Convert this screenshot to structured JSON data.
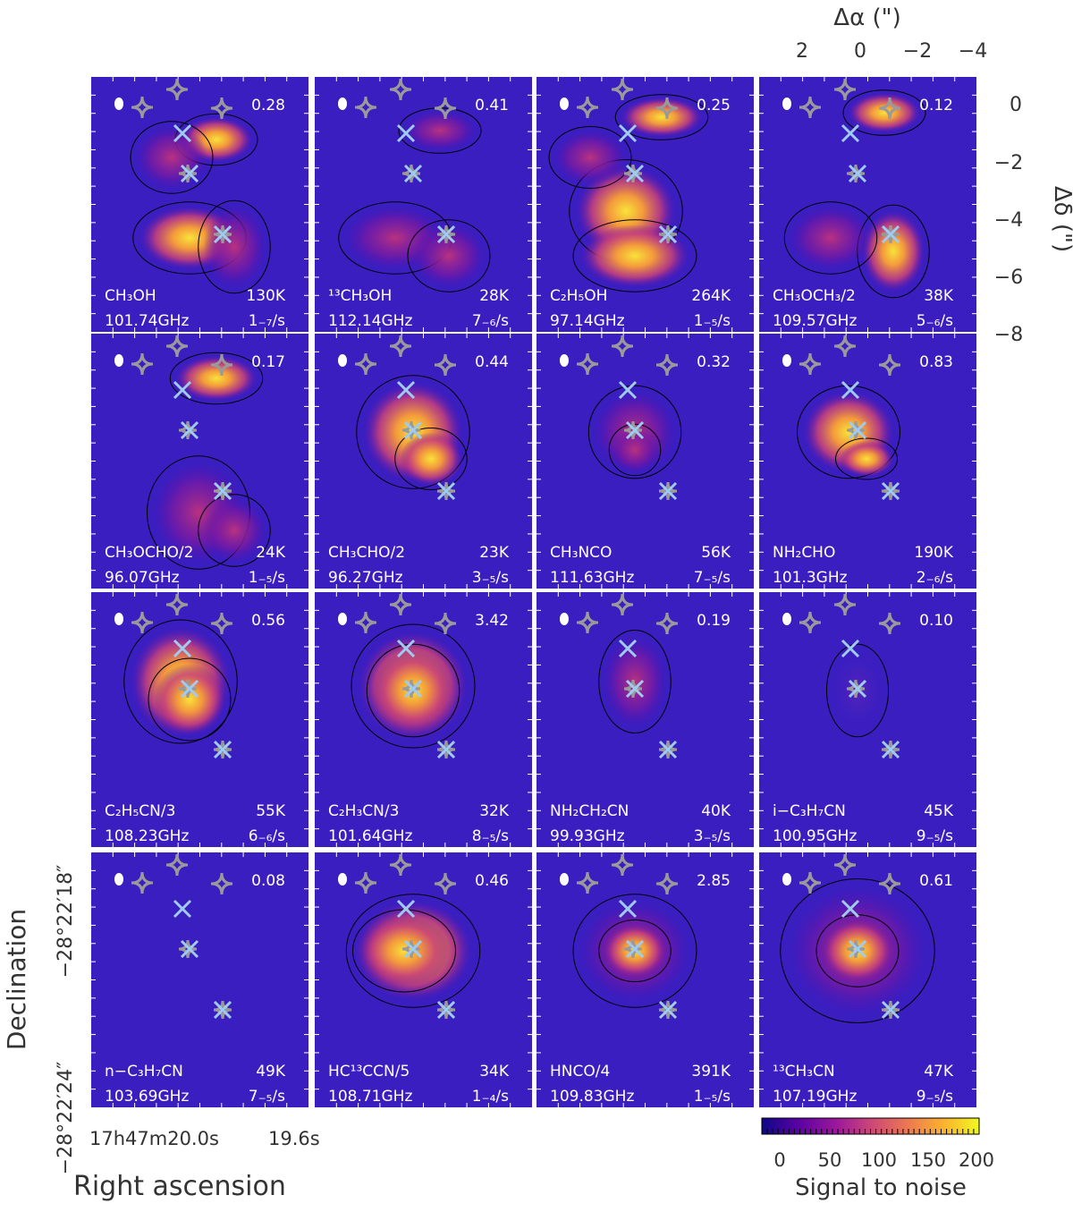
{
  "top_axis": {
    "label": "Δα (\")",
    "ticks": [
      "2",
      "0",
      "−2",
      "−4"
    ]
  },
  "right_axis": {
    "label": "Δδ (\")",
    "ticks": [
      "0",
      "−2",
      "−4",
      "−6",
      "−8"
    ]
  },
  "left_axis": {
    "label": "Declination",
    "ticks": [
      "−28°22′18″",
      "−28°22′24″"
    ]
  },
  "bottom_axis": {
    "label": "Right ascension",
    "ticks": [
      "17h47m20.0s",
      "19.6s"
    ]
  },
  "colorbar": {
    "label": "Signal to noise",
    "ticks": [
      "0",
      "50",
      "100",
      "150",
      "200"
    ],
    "range": [
      0,
      200
    ],
    "colormap": [
      "#0d0887",
      "#5b02a3",
      "#9a179b",
      "#cb4678",
      "#eb7852",
      "#fbb32f",
      "#f0f921"
    ]
  },
  "colors": {
    "panel_background": "#3b1ec0",
    "cross_marker": "#9fcbf0",
    "star_marker": "#9a9a9a",
    "contour": "#000000"
  },
  "panels": [
    {
      "molecule": "CH₃OH",
      "energy": "130K",
      "frequency": "101.74GHz",
      "scale": "1₋₇/s",
      "peak": "0.28"
    },
    {
      "molecule": "¹³CH₃OH",
      "energy": "28K",
      "frequency": "112.14GHz",
      "scale": "7₋₆/s",
      "peak": "0.41"
    },
    {
      "molecule": "C₂H₅OH",
      "energy": "264K",
      "frequency": "97.14GHz",
      "scale": "1₋₅/s",
      "peak": "0.25"
    },
    {
      "molecule": "CH₃OCH₃/2",
      "energy": "38K",
      "frequency": "109.57GHz",
      "scale": "5₋₆/s",
      "peak": "0.12"
    },
    {
      "molecule": "CH₃OCHO/2",
      "energy": "24K",
      "frequency": "96.07GHz",
      "scale": "1₋₅/s",
      "peak": "0.17"
    },
    {
      "molecule": "CH₃CHO/2",
      "energy": "23K",
      "frequency": "96.27GHz",
      "scale": "3₋₅/s",
      "peak": "0.44"
    },
    {
      "molecule": "CH₃NCO",
      "energy": "56K",
      "frequency": "111.63GHz",
      "scale": "7₋₅/s",
      "peak": "0.32"
    },
    {
      "molecule": "NH₂CHO",
      "energy": "190K",
      "frequency": "101.3GHz",
      "scale": "2₋₆/s",
      "peak": "0.83"
    },
    {
      "molecule": "C₂H₅CN/3",
      "energy": "55K",
      "frequency": "108.23GHz",
      "scale": "6₋₆/s",
      "peak": "0.56"
    },
    {
      "molecule": "C₂H₃CN/3",
      "energy": "32K",
      "frequency": "101.64GHz",
      "scale": "8₋₅/s",
      "peak": "3.42"
    },
    {
      "molecule": "NH₂CH₂CN",
      "energy": "40K",
      "frequency": "99.93GHz",
      "scale": "3₋₅/s",
      "peak": "0.19"
    },
    {
      "molecule": "i−C₃H₇CN",
      "energy": "45K",
      "frequency": "100.95GHz",
      "scale": "9₋₅/s",
      "peak": "0.10"
    },
    {
      "molecule": "n−C₃H₇CN",
      "energy": "49K",
      "frequency": "103.69GHz",
      "scale": "7₋₅/s",
      "peak": "0.08"
    },
    {
      "molecule": "HC¹³CCN/5",
      "energy": "34K",
      "frequency": "108.71GHz",
      "scale": "1₋₄/s",
      "peak": "0.46"
    },
    {
      "molecule": "HNCO/4",
      "energy": "391K",
      "frequency": "109.83GHz",
      "scale": "1₋₅/s",
      "peak": "2.85"
    },
    {
      "molecule": "¹³CH₃CN",
      "energy": "47K",
      "frequency": "107.19GHz",
      "scale": "9₋₅/s",
      "peak": "0.61"
    }
  ]
}
